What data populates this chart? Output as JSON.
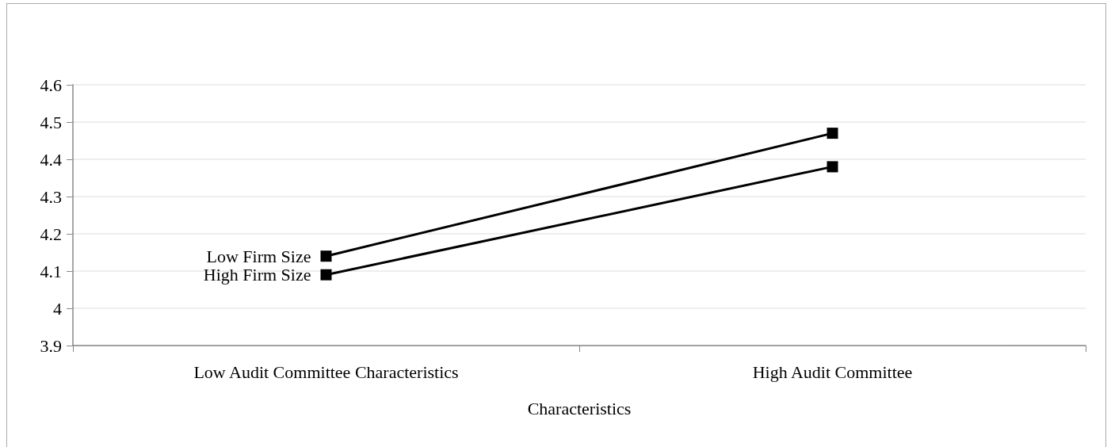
{
  "chart_data": {
    "type": "line",
    "categories": [
      "Low Audit Committee Characteristics",
      "High Audit Committee"
    ],
    "xlabel": "Characteristics",
    "series": [
      {
        "name": "Low Firm Size",
        "color": "#000000",
        "values": [
          4.14,
          4.47
        ]
      },
      {
        "name": "High Firm Size",
        "color": "#000000",
        "values": [
          4.09,
          4.38
        ]
      }
    ],
    "ylim": [
      3.9,
      4.6
    ],
    "yticks": [
      3.9,
      4,
      4.1,
      4.2,
      4.3,
      4.4,
      4.5,
      4.6
    ],
    "grid": "y",
    "legend": false,
    "marker": "square",
    "line_style": "solid"
  }
}
